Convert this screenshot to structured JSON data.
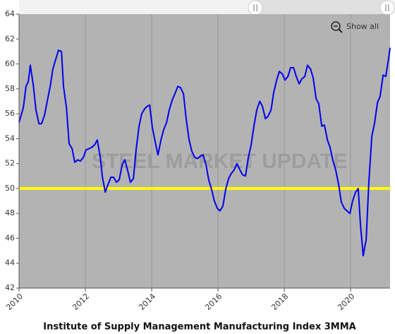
{
  "chart_data": {
    "type": "line",
    "title": "Institute of Supply Management Manufacturing Index 3MMA",
    "watermark": "STEEL MARKET UPDATE",
    "show_all_label": "Show all",
    "color": "#0000ee",
    "reference_line": {
      "value": 50,
      "color": "#ffff00"
    },
    "xlim": [
      2010,
      2021.19
    ],
    "xticks": [
      2010,
      2012,
      2014,
      2016,
      2018,
      2020
    ],
    "ylim": [
      42,
      64
    ],
    "yticks": [
      42,
      44,
      46,
      48,
      50,
      52,
      54,
      56,
      58,
      60,
      62,
      64
    ],
    "grid": true,
    "x": [
      2010.0,
      2010.13,
      2010.21,
      2010.28,
      2010.34,
      2010.43,
      2010.51,
      2010.6,
      2010.68,
      2010.77,
      2010.85,
      2010.94,
      2011.02,
      2011.11,
      2011.19,
      2011.28,
      2011.34,
      2011.43,
      2011.51,
      2011.6,
      2011.68,
      2011.77,
      2011.85,
      2011.94,
      2012.02,
      2012.11,
      2012.19,
      2012.28,
      2012.36,
      2012.45,
      2012.51,
      2012.6,
      2012.68,
      2012.77,
      2012.85,
      2012.94,
      2013.02,
      2013.11,
      2013.19,
      2013.28,
      2013.36,
      2013.45,
      2013.53,
      2013.62,
      2013.7,
      2013.79,
      2013.87,
      2013.94,
      2014.02,
      2014.11,
      2014.19,
      2014.28,
      2014.36,
      2014.45,
      2014.53,
      2014.62,
      2014.7,
      2014.79,
      2014.87,
      2014.96,
      2015.04,
      2015.13,
      2015.21,
      2015.3,
      2015.38,
      2015.47,
      2015.55,
      2015.64,
      2015.72,
      2015.81,
      2015.89,
      2015.98,
      2016.06,
      2016.15,
      2016.23,
      2016.32,
      2016.4,
      2016.49,
      2016.57,
      2016.66,
      2016.74,
      2016.83,
      2016.91,
      2017.0,
      2017.09,
      2017.17,
      2017.26,
      2017.34,
      2017.43,
      2017.51,
      2017.6,
      2017.68,
      2017.77,
      2017.85,
      2017.94,
      2018.02,
      2018.11,
      2018.19,
      2018.28,
      2018.36,
      2018.45,
      2018.53,
      2018.62,
      2018.7,
      2018.79,
      2018.87,
      2018.96,
      2019.04,
      2019.13,
      2019.21,
      2019.3,
      2019.38,
      2019.47,
      2019.55,
      2019.64,
      2019.72,
      2019.81,
      2019.89,
      2019.98,
      2020.06,
      2020.15,
      2020.23,
      2020.3,
      2020.38,
      2020.47,
      2020.55,
      2020.64,
      2020.72,
      2020.81,
      2020.89,
      2020.98,
      2021.06,
      2021.15,
      2021.19
    ],
    "values": [
      55.3,
      56.5,
      58.2,
      58.6,
      59.9,
      58.3,
      56.3,
      55.2,
      55.2,
      55.9,
      57.0,
      58.2,
      59.6,
      60.4,
      61.1,
      61.0,
      58.2,
      56.5,
      53.6,
      53.2,
      52.1,
      52.3,
      52.2,
      52.5,
      53.1,
      53.2,
      53.3,
      53.5,
      53.9,
      52.5,
      51.0,
      49.7,
      50.3,
      50.9,
      50.9,
      50.5,
      50.7,
      51.9,
      52.3,
      51.4,
      50.5,
      50.8,
      53.1,
      55.0,
      56.0,
      56.4,
      56.6,
      56.7,
      54.9,
      53.7,
      52.7,
      53.9,
      54.7,
      55.3,
      56.3,
      57.1,
      57.6,
      58.2,
      58.1,
      57.6,
      55.6,
      53.9,
      53.0,
      52.5,
      52.4,
      52.6,
      52.7,
      51.9,
      50.7,
      49.9,
      49.0,
      48.4,
      48.2,
      48.6,
      49.9,
      50.8,
      51.2,
      51.5,
      52.0,
      51.5,
      51.1,
      51.0,
      52.4,
      53.5,
      55.1,
      56.3,
      57.0,
      56.6,
      55.6,
      55.8,
      56.3,
      57.7,
      58.7,
      59.4,
      59.2,
      58.7,
      59.0,
      59.7,
      59.7,
      59.0,
      58.4,
      58.8,
      59.0,
      59.9,
      59.6,
      58.9,
      57.2,
      56.8,
      55.0,
      55.1,
      53.9,
      53.3,
      52.2,
      51.5,
      50.3,
      48.9,
      48.4,
      48.2,
      48.0,
      49.0,
      49.7,
      50.0,
      47.0,
      44.6,
      45.9,
      50.5,
      54.2,
      55.2,
      56.9,
      57.4,
      59.1,
      59.0,
      60.5,
      61.3
    ]
  }
}
